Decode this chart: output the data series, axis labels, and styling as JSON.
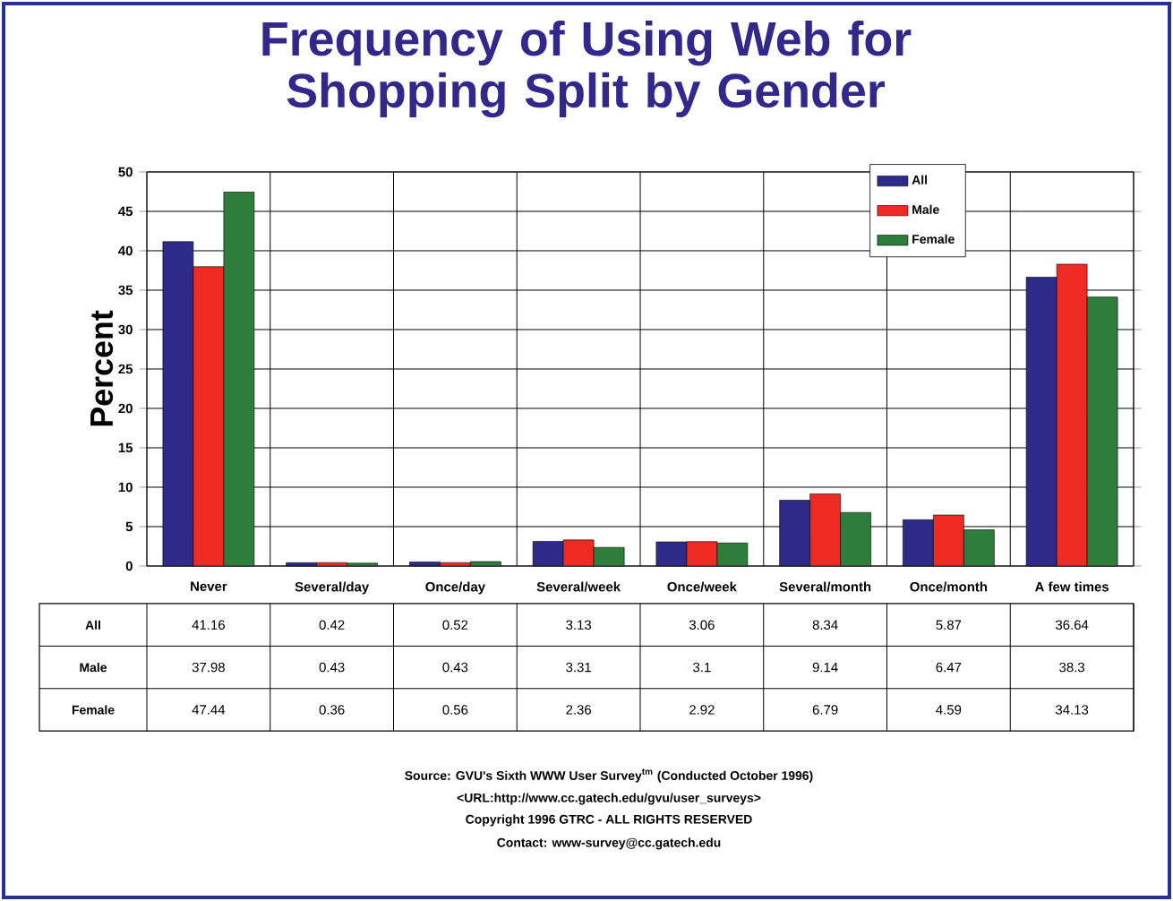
{
  "chart_data": {
    "type": "bar",
    "title": "Frequency of Using Web for Shopping Split by Gender",
    "ylabel": "Percent",
    "categories": [
      "Never",
      "Several/day",
      "Once/day",
      "Several/week",
      "Once/week",
      "Several/month",
      "Once/month",
      "A few times"
    ],
    "series": [
      {
        "name": "All",
        "color": "#2e2a8a",
        "values": [
          41.16,
          0.42,
          0.52,
          3.13,
          3.06,
          8.34,
          5.87,
          36.64
        ]
      },
      {
        "name": "Male",
        "color": "#ee2a22",
        "values": [
          37.98,
          0.43,
          0.43,
          3.31,
          3.1,
          9.14,
          6.47,
          38.3
        ]
      },
      {
        "name": "Female",
        "color": "#2e7d3a",
        "values": [
          47.44,
          0.36,
          0.56,
          2.36,
          2.92,
          6.79,
          4.59,
          34.13
        ]
      }
    ],
    "ylim": [
      0,
      50
    ],
    "yticks": [
      0,
      5,
      10,
      15,
      20,
      25,
      30,
      35,
      40,
      45,
      50
    ],
    "grid": true,
    "legend": "top right",
    "data_labels": true,
    "annotations": [
      "Source: GVU's Sixth WWW User Survey$^{tm}$ (Conducted October 1996)",
      "<URL:http://www.cc.gatech.edu/gvu/user_surveys>",
      "Copyright 1996 GTRC - ALL RIGHTS RESERVED",
      "Contact: www-survey@cc.gatech.edu"
    ]
  }
}
